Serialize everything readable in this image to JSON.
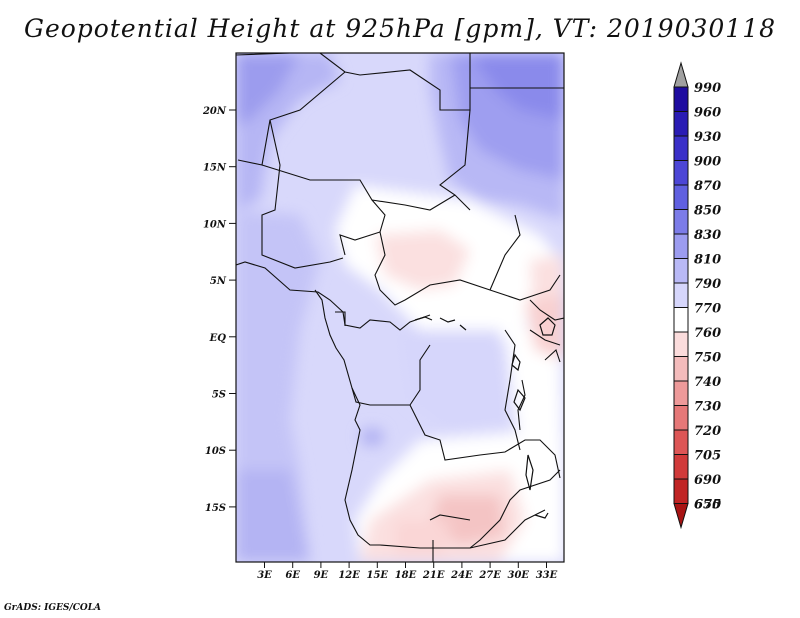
{
  "title": "Geopotential Height at 925hPa [gpm], VT: 2019030118",
  "footer": "GrADS: IGES/COLA",
  "map": {
    "lat_labels": [
      "20N",
      "15N",
      "10N",
      "5N",
      "EQ",
      "5S",
      "10S",
      "15S"
    ],
    "lon_labels": [
      "3E",
      "6E",
      "9E",
      "12E",
      "15E",
      "18E",
      "21E",
      "24E",
      "27E",
      "30E",
      "33E"
    ]
  },
  "colorbar": {
    "levels": [
      "990",
      "960",
      "930",
      "900",
      "870",
      "850",
      "830",
      "810",
      "790",
      "770",
      "760",
      "750",
      "740",
      "730",
      "720",
      "705",
      "690",
      "675",
      "650"
    ],
    "colors": [
      "#a0a0a0",
      "#1e0ca0",
      "#2a1cb4",
      "#3a30c8",
      "#4c46d6",
      "#6060e0",
      "#7c7ce8",
      "#9c9cf0",
      "#b9b9f6",
      "#d6d6fb",
      "#ffffff",
      "#fbdcdc",
      "#f4bcbc",
      "#ee9a9a",
      "#e67878",
      "#dd5656",
      "#d13a3a",
      "#c02424",
      "#a81414"
    ]
  }
}
